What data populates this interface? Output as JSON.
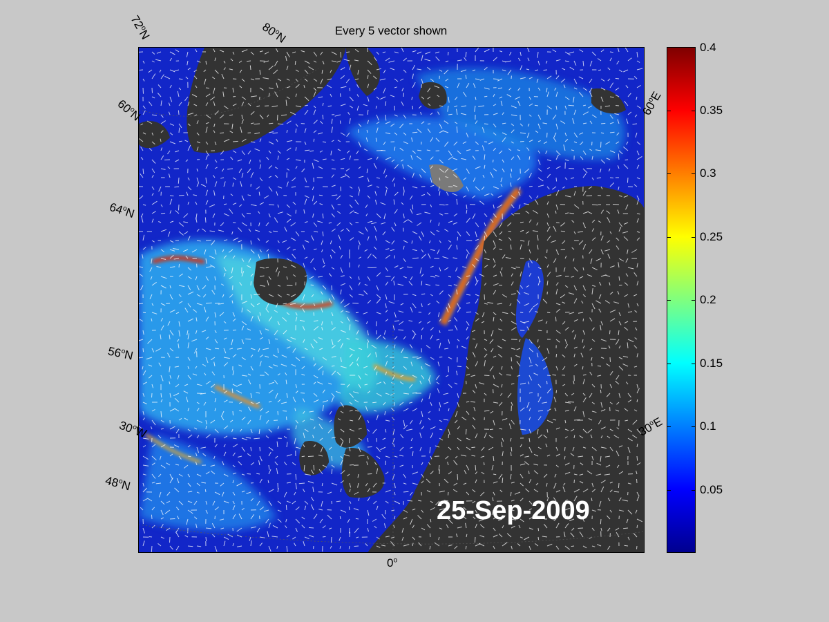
{
  "map_title": "Every 5 vector shown",
  "date_stamp": "25-Sep-2009",
  "graticule_labels": {
    "lat_72": "72",
    "lat_80": "80",
    "lat_60": "60",
    "lat_64": "64",
    "lat_56": "56",
    "lat_48": "48",
    "lon_30w": "30",
    "lon_0": "0",
    "lon_30e": "30",
    "lon_60e": "60",
    "deg": "o",
    "N": "N",
    "W": "W",
    "E": "E"
  },
  "colorbar": {
    "min": 0,
    "max": 0.4,
    "ticks": [
      "0.05",
      "0.1",
      "0.15",
      "0.2",
      "0.25",
      "0.3",
      "0.35",
      "0.4"
    ],
    "tick_values": [
      0.05,
      0.1,
      0.15,
      0.2,
      0.25,
      0.3,
      0.35,
      0.4
    ],
    "colormap": "jet"
  },
  "colors": {
    "land": "#333333",
    "ice_lakes": "#7a7a7a",
    "background": "#c8c8c8",
    "vectors": "#ffffff"
  }
}
